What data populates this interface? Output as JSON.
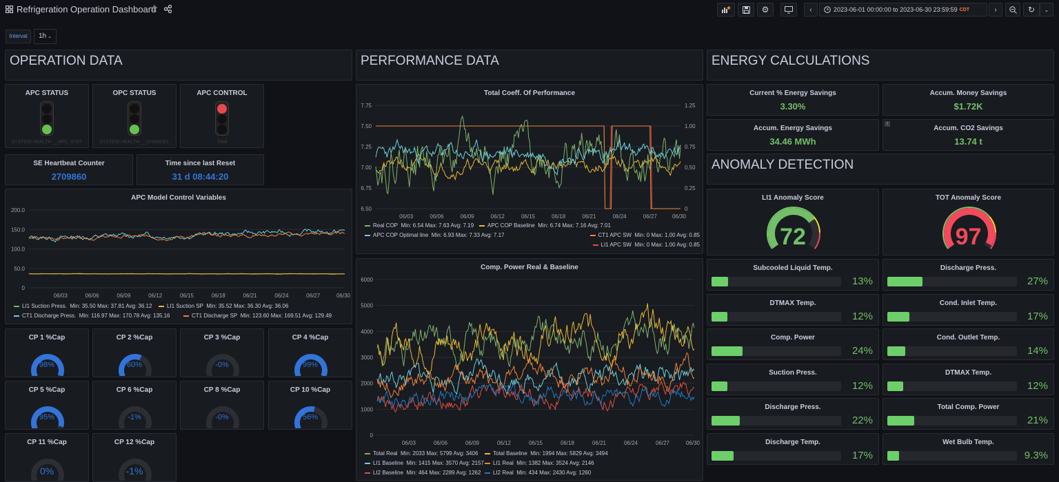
{
  "header": {
    "title": "Refrigeration Operation Dashboard",
    "time_range": "2023-06-01 00:00:00 to 2023-06-30 23:59:59",
    "timezone": "CDT"
  },
  "variables": {
    "interval_label": "Interval",
    "interval_value": "1h"
  },
  "operation": {
    "row_title": "OPERATION DATA",
    "apc_status": {
      "title": "APC STATUS",
      "caption": "SYSTEM HEALTH __APC_STAT"
    },
    "opc_status": {
      "title": "OPC STATUS",
      "caption": "SYSTEM HEALTH __CHANNEL"
    },
    "apc_control": {
      "title": "APC CONTROL",
      "caption": "Total"
    },
    "heartbeat": {
      "title": "SE Heartbeat Counter",
      "value": "2709860"
    },
    "reset": {
      "title": "Time since last Reset",
      "value": "31 d 08:44:20"
    },
    "apc_chart": {
      "title": "APC Model Control Variables",
      "yticks": [
        "200.0",
        "150.0",
        "100.0",
        "50.0",
        "0"
      ],
      "xticks": [
        "06/03",
        "06/06",
        "06/09",
        "06/12",
        "06/15",
        "06/18",
        "06/21",
        "06/24",
        "06/27",
        "06/30"
      ],
      "legend": [
        {
          "label": "LI1 Suction Press.",
          "stats": "Min: 35.50  Max: 37.81  Avg: 36.12",
          "color": "#7eb26d"
        },
        {
          "label": "LI1 Suction SP",
          "stats": "Min: 35.52  Max: 36.30  Avg: 36.06",
          "color": "#eab839"
        },
        {
          "label": "CT1 Discharge Press.",
          "stats": "Min: 116.97  Max: 170.78  Avg: 135.16",
          "color": "#6ed0e0"
        },
        {
          "label": "CT1 Discharge SP",
          "stats": "Min: 123.60  Max: 169.51  Avg: 129.49",
          "color": "#ef843c"
        }
      ]
    },
    "cps": [
      {
        "title": "CP 1 %Cap",
        "value": "98%",
        "pct": 98
      },
      {
        "title": "CP 2 %Cap",
        "value": "60%",
        "pct": 60
      },
      {
        "title": "CP 3 %Cap",
        "value": "-0%",
        "pct": 0
      },
      {
        "title": "CP 4 %Cap",
        "value": "99%",
        "pct": 99
      },
      {
        "title": "CP 5 %Cap",
        "value": "95%",
        "pct": 95
      },
      {
        "title": "CP 6 %Cap",
        "value": "-1%",
        "pct": 0
      },
      {
        "title": "CP 8 %Cap",
        "value": "-0%",
        "pct": 0
      },
      {
        "title": "CP 10 %Cap",
        "value": "56%",
        "pct": 56
      },
      {
        "title": "CP 11 %Cap",
        "value": "0%",
        "pct": 0
      },
      {
        "title": "CP 12 %Cap",
        "value": "-1%",
        "pct": 0
      }
    ]
  },
  "performance": {
    "row_title": "PERFORMANCE DATA",
    "cop_chart": {
      "title": "Total Coeff. Of Performance",
      "yticks": [
        "7.75",
        "7.50",
        "7.25",
        "7.00",
        "6.75",
        "6.50"
      ],
      "y2ticks": [
        "1.25",
        "1.00",
        "0.75",
        "0.50",
        "0.25",
        "0"
      ],
      "xticks": [
        "06/03",
        "06/06",
        "06/09",
        "06/12",
        "06/15",
        "06/18",
        "06/21",
        "06/24",
        "06/27",
        "06/30"
      ],
      "legend": [
        {
          "label": "Real COP",
          "stats": "Min: 6.54  Max: 7.63  Avg: 7.19",
          "color": "#7eb26d"
        },
        {
          "label": "APC COP Baseline",
          "stats": "Min: 6.74  Max: 7.16  Avg: 7.01",
          "color": "#eab839"
        },
        {
          "label": "APC COP Optimal line",
          "stats": "Min: 6.93  Max: 7.33  Avg: 7.17",
          "color": "#6ed0e0"
        },
        {
          "label": "CT1 APC SW",
          "stats": "Min: 0  Max: 1.00  Avg: 0.85",
          "color": "#ef843c"
        },
        {
          "label": "LI1 APC SW",
          "stats": "Min: 0  Max: 1.00  Avg: 0.85",
          "color": "#e24d42"
        }
      ]
    },
    "power_chart": {
      "title": "Comp. Power Real & Baseline",
      "yticks": [
        "6000",
        "5000",
        "4000",
        "3000",
        "2000",
        "1000",
        "0"
      ],
      "xticks": [
        "06/03",
        "06/06",
        "06/09",
        "06/12",
        "06/15",
        "06/18",
        "06/21",
        "06/24",
        "06/27",
        "06/30"
      ],
      "legend": [
        {
          "label": "Total Real",
          "stats": "Min: 2033  Max: 5799  Avg: 3406",
          "color": "#7eb26d"
        },
        {
          "label": "Total Baseline",
          "stats": "Min: 1994  Max: 5829  Avg: 3494",
          "color": "#eab839"
        },
        {
          "label": "LI1 Baseline",
          "stats": "Min: 1415  Max: 3570  Avg: 2157",
          "color": "#6ed0e0"
        },
        {
          "label": "LI1 Real",
          "stats": "Min: 1382  Max: 3524  Avg: 2146",
          "color": "#ef843c"
        },
        {
          "label": "LI2 Baseline",
          "stats": "Min: 464  Max: 2289  Avg: 1262",
          "color": "#e24d42"
        },
        {
          "label": "LI2 Real",
          "stats": "Min: 434  Max: 2430  Avg: 1260",
          "color": "#1f78c1"
        }
      ]
    }
  },
  "energy": {
    "row_title": "ENERGY CALCULATIONS",
    "stats": [
      {
        "title": "Current % Energy Savings",
        "value": "3.30%"
      },
      {
        "title": "Accum. Money Savings",
        "value": "$1.72K"
      },
      {
        "title": "Accum. Energy Savings",
        "value": "34.46 MWh"
      },
      {
        "title": "Accum. CO2 Savings",
        "value": "13.74 t"
      }
    ]
  },
  "anomaly": {
    "row_title": "ANOMALY DETECTION",
    "li1": {
      "title": "LI1 Anomaly Score",
      "value": "72",
      "pct": 72,
      "color": "#73bf69"
    },
    "tot": {
      "title": "TOT Anomaly Score",
      "value": "97",
      "pct": 97,
      "color": "#f2495c"
    },
    "bars_left": [
      {
        "title": "Subcooled Liquid Temp.",
        "value": "13%",
        "pct": 13
      },
      {
        "title": "DTMAX Temp.",
        "value": "12%",
        "pct": 12
      },
      {
        "title": "Comp. Power",
        "value": "24%",
        "pct": 24
      },
      {
        "title": "Suction Press.",
        "value": "12%",
        "pct": 12
      },
      {
        "title": "Discharge Press.",
        "value": "22%",
        "pct": 22
      },
      {
        "title": "Discharge Temp.",
        "value": "17%",
        "pct": 17
      }
    ],
    "bars_right": [
      {
        "title": "Discharge Press.",
        "value": "27%",
        "pct": 27
      },
      {
        "title": "Cond. Inlet Temp.",
        "value": "17%",
        "pct": 17
      },
      {
        "title": "Cond. Outlet Temp.",
        "value": "14%",
        "pct": 14
      },
      {
        "title": "DTMAX Temp.",
        "value": "12%",
        "pct": 12
      },
      {
        "title": "Total Comp. Power",
        "value": "21%",
        "pct": 21
      },
      {
        "title": "Wet Bulb Temp.",
        "value": "9.3%",
        "pct": 9.3
      }
    ]
  }
}
